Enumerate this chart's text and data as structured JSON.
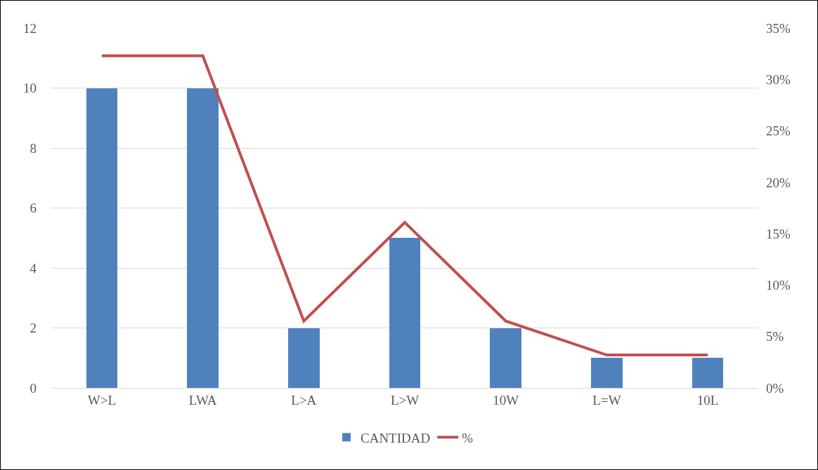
{
  "chart_data": {
    "type": "bar",
    "categories": [
      "W>L",
      "LWA",
      "L>A",
      "L>W",
      "10W",
      "L=W",
      "10L"
    ],
    "series": [
      {
        "name": "CANTIDAD",
        "color": "#4f81bd",
        "values": [
          10,
          10,
          2,
          5,
          2,
          1,
          1
        ]
      },
      {
        "name": "%",
        "type": "line",
        "axis": "y2",
        "color": "#c0504d",
        "values": [
          32.3,
          32.3,
          6.5,
          16.1,
          6.5,
          3.2,
          3.2
        ]
      }
    ],
    "ylim": [
      0,
      12
    ],
    "yticks": [
      0,
      2,
      4,
      6,
      8,
      10,
      12
    ],
    "y2lim": [
      0,
      35
    ],
    "y2ticks": [
      {
        "value": 0,
        "label": "0%"
      },
      {
        "value": 5,
        "label": "5%"
      },
      {
        "value": 10,
        "label": "10%"
      },
      {
        "value": 15,
        "label": "15%"
      },
      {
        "value": 20,
        "label": "20%"
      },
      {
        "value": 25,
        "label": "25%"
      },
      {
        "value": 30,
        "label": "30%"
      },
      {
        "value": 35,
        "label": "35%"
      }
    ],
    "grid": "y",
    "legend": "bottom",
    "marker": "none",
    "line_style": "solid"
  }
}
